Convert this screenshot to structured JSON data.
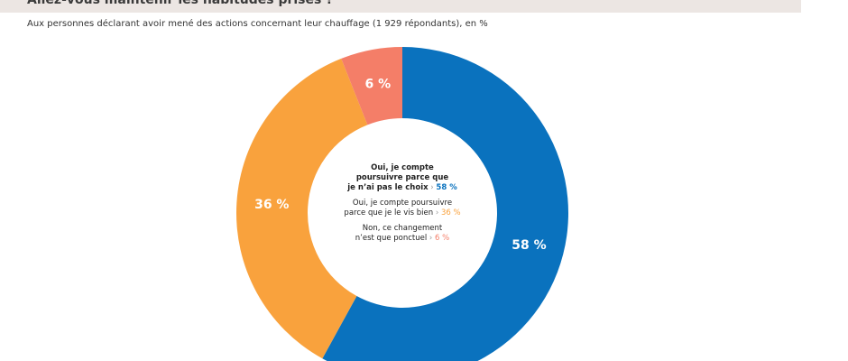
{
  "header": {
    "title": "Allez-vous maintenir les habitudes prises ?",
    "subtitle": "Aux personnes déclarant avoir mené des actions concernant leur chauffage (1 929  répondants), en %"
  },
  "chart_data": {
    "type": "pie",
    "variant": "donut",
    "title": "Allez-vous maintenir les habitudes prises ?",
    "subtitle": "Aux personnes déclarant avoir mené des actions concernant leur chauffage (1 929  répondants), en %",
    "slices": [
      {
        "key": "pas-le-choix",
        "value": 58,
        "label": "58 %",
        "color": "#0a72be",
        "legend_lines": [
          "Oui, je compte",
          "poursuivre parce que",
          "je n’ai pas le choix"
        ],
        "legend_bold": true
      },
      {
        "key": "vis-bien",
        "value": 36,
        "label": "36 %",
        "color": "#f9a23d",
        "legend_lines": [
          "Oui, je compte poursuivre",
          "parce que je le vis bien"
        ],
        "legend_bold": false
      },
      {
        "key": "ponctuel",
        "value": 6,
        "label": "6 %",
        "color": "#f47e68",
        "legend_lines": [
          "Non, ce changement",
          "n’est que ponctuel"
        ],
        "legend_bold": false
      }
    ],
    "legend_placement": "center",
    "legend_separator": "›"
  }
}
